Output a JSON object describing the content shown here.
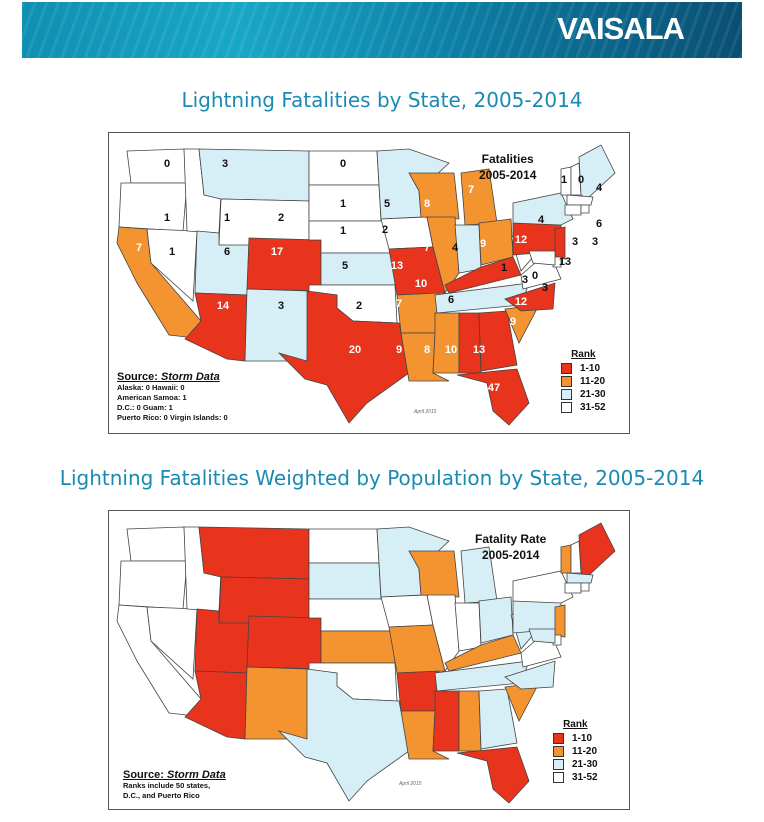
{
  "brand": {
    "logo_text": "VAISALA"
  },
  "colors": {
    "rank1": "#e8341c",
    "rank2": "#f49431",
    "rank3": "#d6eef5",
    "rank4": "#ffffff",
    "accent": "#1a8ab3"
  },
  "map1": {
    "heading": "Lightning Fatalities by State, 2005-2014",
    "title_line1": "Fatalities",
    "title_line2": "2005-2014",
    "source_title": "Source:",
    "source_name": "Storm Data",
    "notes": [
      "Alaska: 0  Hawaii: 0",
      "American Samoa: 1",
      "D.C.: 0  Guam: 1",
      "Puerto Rico: 0  Virgin Islands: 0"
    ],
    "date_stamp": "April 2015",
    "legend_title": "Rank",
    "legend": [
      "1-10",
      "11-20",
      "21-30",
      "31-52"
    ],
    "states": {
      "WA": 0,
      "OR": 1,
      "CA": 7,
      "NV": 1,
      "ID": 1,
      "MT": 3,
      "WY": 2,
      "UT": 6,
      "CO": 17,
      "AZ": 14,
      "NM": 3,
      "ND": 0,
      "SD": 1,
      "NE": 1,
      "KS": 5,
      "OK": 2,
      "TX": 20,
      "MN": 5,
      "IA": 2,
      "MO": 13,
      "AR": 7,
      "LA": 9,
      "WI": 8,
      "IL": 7,
      "MS": 8,
      "MI": 7,
      "IN": 4,
      "OH": 9,
      "KY": 10,
      "TN": 6,
      "AL": 10,
      "GA": 13,
      "FL": 47,
      "SC": 9,
      "NC": 12,
      "VA": 3,
      "WV": 1,
      "PA": 12,
      "NY": 4,
      "VT": 1,
      "NH": 0,
      "ME": 4,
      "MA": 6,
      "CT": 3,
      "RI": 3,
      "NJ": 13,
      "DE": 0,
      "MD": 3
    }
  },
  "map2": {
    "heading": "Lightning Fatalities Weighted by Population by State, 2005-2014",
    "title_line1": "Fatality Rate",
    "title_line2": "2005-2014",
    "source_title": "Source:",
    "source_name": "Storm Data",
    "notes": [
      "Ranks include 50 states,",
      "D.C., and Puerto Rico"
    ],
    "date_stamp": "April 2015",
    "legend_title": "Rank",
    "legend": [
      "1-10",
      "11-20",
      "21-30",
      "31-52"
    ]
  }
}
